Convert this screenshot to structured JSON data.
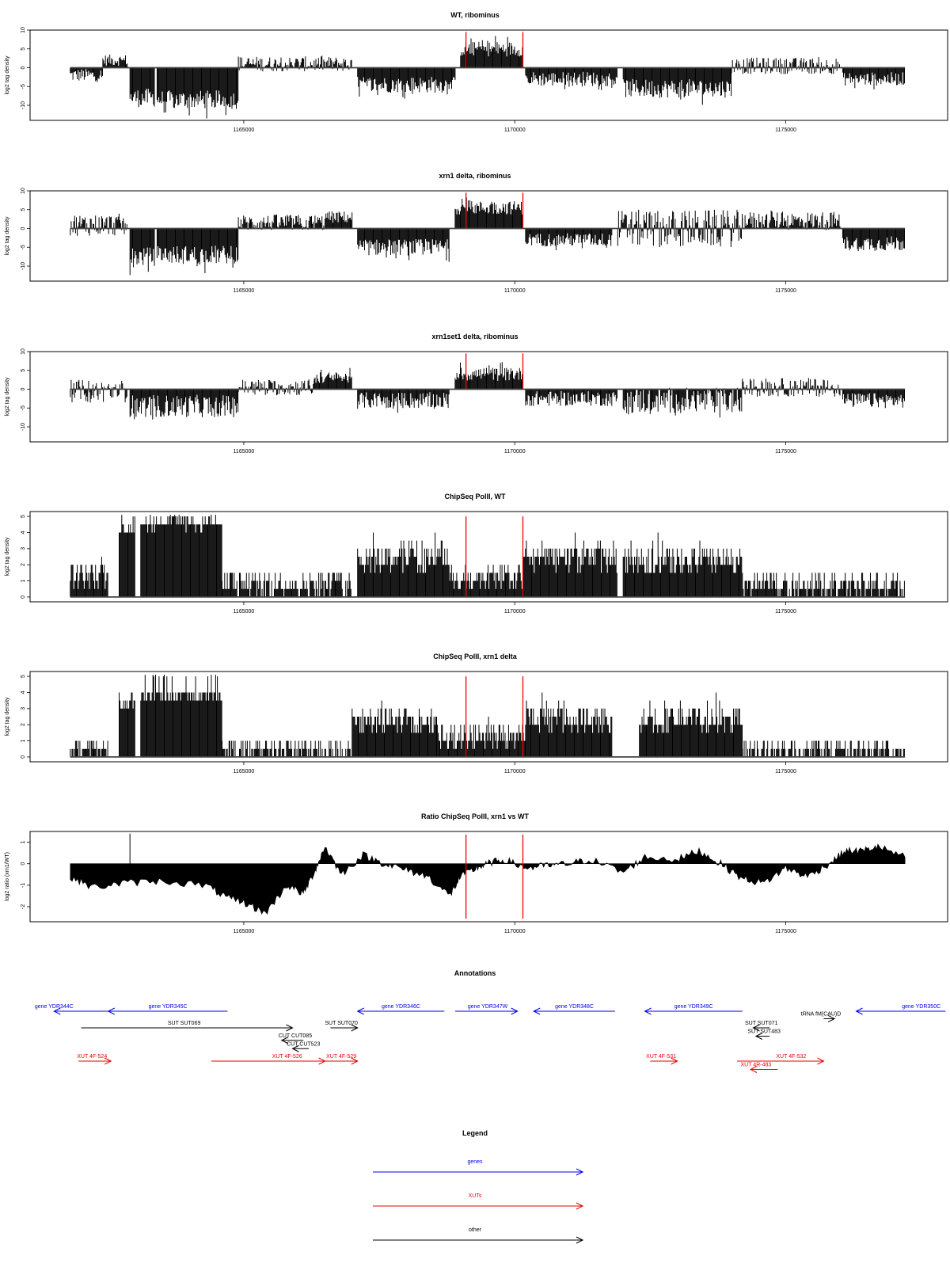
{
  "chart_data": [
    {
      "type": "bar",
      "title": "WT, ribominus",
      "xlabel": "",
      "ylabel": "log2 tag density",
      "ylim": [
        -14,
        10
      ],
      "yticks": [
        -10,
        -5,
        0,
        5,
        10
      ],
      "xlim": [
        1161700,
        1177300
      ],
      "xticks": [
        1165000,
        1170000,
        1175000
      ],
      "x_tick_labels": [
        "1165000",
        "1170000",
        "1175000"
      ],
      "markers": [
        1169100,
        1170150
      ],
      "segments": [
        {
          "x0": 1161800,
          "x1": 1162400,
          "v": -2,
          "noise": 1.8
        },
        {
          "x0": 1162400,
          "x1": 1162850,
          "v": 2,
          "noise": 1.5
        },
        {
          "x0": 1162900,
          "x1": 1163350,
          "v": -8,
          "noise": 2.5
        },
        {
          "x0": 1163400,
          "x1": 1164900,
          "v": -8.5,
          "noise": 2.5
        },
        {
          "x0": 1164900,
          "x1": 1167000,
          "v": 1,
          "noise": 2
        },
        {
          "x0": 1167100,
          "x1": 1168900,
          "v": -4.5,
          "noise": 2.2
        },
        {
          "x0": 1169000,
          "x1": 1170150,
          "v": 5,
          "noise": 2
        },
        {
          "x0": 1170200,
          "x1": 1171900,
          "v": -3,
          "noise": 2
        },
        {
          "x0": 1172000,
          "x1": 1174000,
          "v": -5.5,
          "noise": 2.5
        },
        {
          "x0": 1174000,
          "x1": 1176000,
          "v": 0.5,
          "noise": 2.2
        },
        {
          "x0": 1176050,
          "x1": 1177200,
          "v": -3,
          "noise": 1.8
        }
      ]
    },
    {
      "type": "bar",
      "title": "xrn1 delta, ribominus",
      "xlabel": "",
      "ylabel": "log2 tag density",
      "ylim": [
        -14,
        10
      ],
      "yticks": [
        -10,
        -5,
        0,
        5,
        10
      ],
      "xlim": [
        1161700,
        1177300
      ],
      "xticks": [
        1165000,
        1170000,
        1175000
      ],
      "x_tick_labels": [
        "1165000",
        "1170000",
        "1175000"
      ],
      "markers": [
        1169100,
        1170150
      ],
      "segments": [
        {
          "x0": 1161800,
          "x1": 1162850,
          "v": 1,
          "noise": 3
        },
        {
          "x0": 1162900,
          "x1": 1163350,
          "v": -7.5,
          "noise": 2.5
        },
        {
          "x0": 1163400,
          "x1": 1164900,
          "v": -7,
          "noise": 2.5
        },
        {
          "x0": 1164900,
          "x1": 1166500,
          "v": 1.5,
          "noise": 2.2
        },
        {
          "x0": 1166500,
          "x1": 1167000,
          "v": 3,
          "noise": 1.6
        },
        {
          "x0": 1167100,
          "x1": 1168800,
          "v": -5,
          "noise": 2.2
        },
        {
          "x0": 1168900,
          "x1": 1170150,
          "v": 5.5,
          "noise": 1.8
        },
        {
          "x0": 1170200,
          "x1": 1171800,
          "v": -3,
          "noise": 1.8
        },
        {
          "x0": 1171900,
          "x1": 1174200,
          "v": 0,
          "noise": 5
        },
        {
          "x0": 1174200,
          "x1": 1176000,
          "v": 2,
          "noise": 2.5
        },
        {
          "x0": 1176050,
          "x1": 1177200,
          "v": -4,
          "noise": 2
        }
      ]
    },
    {
      "type": "bar",
      "title": "xrn1set1 delta, ribominus",
      "xlabel": "",
      "ylabel": "log2 tag density",
      "ylim": [
        -14,
        10
      ],
      "yticks": [
        -10,
        -5,
        0,
        5,
        10
      ],
      "xlim": [
        1161700,
        1177300
      ],
      "xticks": [
        1165000,
        1170000,
        1175000
      ],
      "x_tick_labels": [
        "1165000",
        "1170000",
        "1175000"
      ],
      "markers": [
        1169100,
        1170150
      ],
      "segments": [
        {
          "x0": 1161800,
          "x1": 1162850,
          "v": -0.5,
          "noise": 3
        },
        {
          "x0": 1162900,
          "x1": 1164900,
          "v": -4.5,
          "noise": 3
        },
        {
          "x0": 1164900,
          "x1": 1166300,
          "v": 0.5,
          "noise": 2.2
        },
        {
          "x0": 1166300,
          "x1": 1167000,
          "v": 3,
          "noise": 1.6
        },
        {
          "x0": 1167100,
          "x1": 1168800,
          "v": -3,
          "noise": 2.2
        },
        {
          "x0": 1168900,
          "x1": 1170150,
          "v": 4,
          "noise": 1.8
        },
        {
          "x0": 1170200,
          "x1": 1171900,
          "v": -2.5,
          "noise": 2
        },
        {
          "x0": 1172000,
          "x1": 1174200,
          "v": -3,
          "noise": 3.5
        },
        {
          "x0": 1174200,
          "x1": 1176000,
          "v": 0.5,
          "noise": 2.5
        },
        {
          "x0": 1176050,
          "x1": 1177200,
          "v": -3,
          "noise": 2
        }
      ]
    },
    {
      "type": "bar",
      "title": "ChipSeq PolII, WT",
      "xlabel": "",
      "ylabel": "log2 tag density",
      "ylim": [
        -0.3,
        5.3
      ],
      "yticks": [
        0,
        1,
        2,
        3,
        4,
        5
      ],
      "xlim": [
        1161700,
        1177300
      ],
      "xticks": [
        1165000,
        1170000,
        1175000
      ],
      "x_tick_labels": [
        "1165000",
        "1170000",
        "1175000"
      ],
      "markers": [
        1169100,
        1170150
      ],
      "segments": [
        {
          "x0": 1161800,
          "x1": 1162500,
          "v": 1.3,
          "noise": 0.7
        },
        {
          "x0": 1162700,
          "x1": 1163000,
          "v": 4.3,
          "noise": 0.5
        },
        {
          "x0": 1163100,
          "x1": 1164600,
          "v": 4.6,
          "noise": 0.4
        },
        {
          "x0": 1164600,
          "x1": 1167000,
          "v": 0.8,
          "noise": 0.8
        },
        {
          "x0": 1167100,
          "x1": 1168800,
          "v": 2.5,
          "noise": 0.9
        },
        {
          "x0": 1168800,
          "x1": 1170150,
          "v": 1.1,
          "noise": 0.8
        },
        {
          "x0": 1170150,
          "x1": 1171900,
          "v": 2.4,
          "noise": 0.9
        },
        {
          "x0": 1172000,
          "x1": 1174200,
          "v": 2.2,
          "noise": 0.9
        },
        {
          "x0": 1174200,
          "x1": 1177200,
          "v": 0.7,
          "noise": 0.7
        }
      ]
    },
    {
      "type": "bar",
      "title": "ChipSeq PolII, xrn1 delta",
      "xlabel": "",
      "ylabel": "log2 tag density",
      "ylim": [
        -0.3,
        5.3
      ],
      "yticks": [
        0,
        1,
        2,
        3,
        4,
        5
      ],
      "xlim": [
        1161700,
        1177300
      ],
      "xticks": [
        1165000,
        1170000,
        1175000
      ],
      "x_tick_labels": [
        "1165000",
        "1170000",
        "1175000"
      ],
      "markers": [
        1169100,
        1170150
      ],
      "segments": [
        {
          "x0": 1161800,
          "x1": 1162500,
          "v": 0.5,
          "noise": 0.5
        },
        {
          "x0": 1162700,
          "x1": 1163000,
          "v": 3.4,
          "noise": 0.5
        },
        {
          "x0": 1163100,
          "x1": 1164600,
          "v": 3.8,
          "noise": 0.4
        },
        {
          "x0": 1164600,
          "x1": 1167000,
          "v": 0.4,
          "noise": 0.6
        },
        {
          "x0": 1167000,
          "x1": 1168600,
          "v": 2.2,
          "noise": 0.8
        },
        {
          "x0": 1168600,
          "x1": 1170200,
          "v": 1.2,
          "noise": 0.7
        },
        {
          "x0": 1170200,
          "x1": 1171800,
          "v": 2.3,
          "noise": 0.8
        },
        {
          "x0": 1172300,
          "x1": 1174200,
          "v": 2.3,
          "noise": 0.8
        },
        {
          "x0": 1174200,
          "x1": 1177200,
          "v": 0.5,
          "noise": 0.6
        }
      ]
    },
    {
      "type": "area",
      "title": "Ratio ChipSeq PolII, xrn1 vs WT",
      "xlabel": "",
      "ylabel": "log2 ratio (xrn1/WT)",
      "ylim": [
        -2.7,
        1.5
      ],
      "yticks": [
        -2,
        -1,
        0,
        1
      ],
      "xlim": [
        1161700,
        1177300
      ],
      "xticks": [
        1165000,
        1170000,
        1175000
      ],
      "x_tick_labels": [
        "1165000",
        "1170000",
        "1175000"
      ],
      "markers": [
        1169100,
        1170150
      ],
      "spike": {
        "x": 1162900,
        "y": 1.4
      },
      "x": [
        1161800,
        1162200,
        1162800,
        1163500,
        1164300,
        1164700,
        1165000,
        1165400,
        1165800,
        1166100,
        1166300,
        1166500,
        1166800,
        1167200,
        1167600,
        1168000,
        1168400,
        1168800,
        1169000,
        1169300,
        1169500,
        1169800,
        1170200,
        1170600,
        1171000,
        1171400,
        1172000,
        1172400,
        1173000,
        1173400,
        1173800,
        1174200,
        1174600,
        1175000,
        1175400,
        1175800,
        1176100,
        1176400,
        1176700,
        1177200
      ],
      "values": [
        -0.6,
        -1.1,
        -0.9,
        -0.8,
        -1.0,
        -1.6,
        -1.8,
        -2.3,
        -1.0,
        -1.4,
        -0.4,
        0.8,
        -0.5,
        0.4,
        0.0,
        -0.3,
        -0.6,
        -1.5,
        -0.6,
        -0.2,
        0.0,
        0.2,
        -0.2,
        -0.1,
        0.0,
        0.2,
        -0.4,
        0.3,
        0.2,
        0.6,
        0.0,
        -0.7,
        -0.9,
        -0.2,
        -0.6,
        0.0,
        0.6,
        0.6,
        0.8,
        0.3
      ]
    }
  ],
  "annotations": {
    "title": "Annotations",
    "tracks": [
      {
        "label": "gene YDR344C",
        "color": "#0000ee",
        "start": 1161500,
        "end": 1162500,
        "dir": "left",
        "row": 0,
        "label_x": 1161500
      },
      {
        "label": "gene YDR345C",
        "color": "#0000ee",
        "start": 1162500,
        "end": 1164700,
        "dir": "left",
        "row": 0,
        "label_x": 1163600
      },
      {
        "label": "gene YDR346C",
        "color": "#0000ee",
        "start": 1167100,
        "end": 1168700,
        "dir": "left",
        "row": 0,
        "label_x": 1167900
      },
      {
        "label": "gene YDR347W",
        "color": "#0000ee",
        "start": 1168900,
        "end": 1170050,
        "dir": "right",
        "row": 0,
        "label_x": 1169500,
        "above": true
      },
      {
        "label": "gene YDR348C",
        "color": "#0000ee",
        "start": 1170350,
        "end": 1171850,
        "dir": "left",
        "row": 0,
        "label_x": 1171100
      },
      {
        "label": "gene YDR349C",
        "color": "#0000ee",
        "start": 1172400,
        "end": 1174200,
        "dir": "left",
        "row": 0,
        "label_x": 1173300
      },
      {
        "label": "gene YDR350C",
        "color": "#0000ee",
        "start": 1176300,
        "end": 1177950,
        "dir": "left",
        "row": 0,
        "label_x": 1177500
      },
      {
        "label": "tRNA fM(CAU)D",
        "color": "#000000",
        "start": 1175700,
        "end": 1175900,
        "dir": "right",
        "row": 0.45,
        "label_x": 1175650
      },
      {
        "label": "SUT SUT069",
        "color": "#000000",
        "start": 1162000,
        "end": 1165900,
        "dir": "right",
        "row": 1,
        "label_x": 1163900
      },
      {
        "label": "SUT SUT070",
        "color": "#000000",
        "start": 1166600,
        "end": 1167100,
        "dir": "right",
        "row": 1,
        "label_x": 1166800
      },
      {
        "label": "CUT CUT085",
        "color": "#000000",
        "start": 1165700,
        "end": 1166100,
        "dir": "left",
        "row": 1.75,
        "label_x": 1165950
      },
      {
        "label": "CUT CUT523",
        "color": "#000000",
        "start": 1165900,
        "end": 1166200,
        "dir": "left",
        "row": 2.25,
        "label_x": 1166100
      },
      {
        "label": "SUT SUT071",
        "color": "#000000",
        "start": 1174400,
        "end": 1174700,
        "dir": "left",
        "row": 1,
        "label_x": 1174550
      },
      {
        "label": "SUT SUT483",
        "color": "#000000",
        "start": 1174450,
        "end": 1174700,
        "dir": "left",
        "row": 1.5,
        "label_x": 1174600
      },
      {
        "label": "XUT 4F-524",
        "color": "#ee0000",
        "start": 1161950,
        "end": 1162550,
        "dir": "right",
        "row": 3,
        "label_x": 1162200
      },
      {
        "label": "XUT 4F-526",
        "color": "#ee0000",
        "start": 1164400,
        "end": 1166500,
        "dir": "right",
        "row": 3,
        "label_x": 1165800
      },
      {
        "label": "XUT 4F-529",
        "color": "#ee0000",
        "start": 1166500,
        "end": 1167100,
        "dir": "right",
        "row": 3,
        "label_x": 1166800
      },
      {
        "label": "XUT 4F-531",
        "color": "#ee0000",
        "start": 1172500,
        "end": 1173000,
        "dir": "right",
        "row": 3,
        "label_x": 1172700
      },
      {
        "label": "XUT 4F-532",
        "color": "#ee0000",
        "start": 1174100,
        "end": 1175700,
        "dir": "right",
        "row": 3,
        "label_x": 1175100
      },
      {
        "label": "XUT 4R-483",
        "color": "#ee0000",
        "start": 1174350,
        "end": 1174850,
        "dir": "left",
        "row": 3.5,
        "label_x": 1174450
      }
    ]
  },
  "legend": {
    "title": "Legend",
    "items": [
      {
        "label": "genes",
        "color": "#0000ee"
      },
      {
        "label": "XUTs",
        "color": "#ee0000"
      },
      {
        "label": "other",
        "color": "#000000"
      }
    ]
  }
}
